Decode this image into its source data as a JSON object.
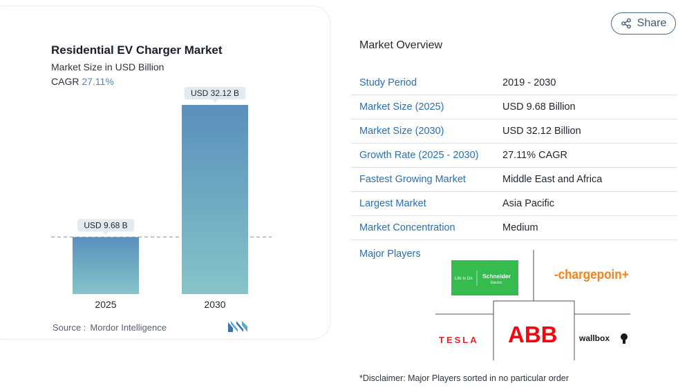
{
  "chart": {
    "title": "Residential EV Charger Market",
    "subtitle": "Market Size in USD Billion",
    "cagr_label": "CAGR",
    "cagr_value": "27.11%",
    "source_label": "Source :",
    "source_value": "Mordor Intelligence"
  },
  "chart_data": {
    "type": "bar",
    "categories": [
      "2025",
      "2030"
    ],
    "values": [
      9.68,
      32.12
    ],
    "data_labels": [
      "USD 9.68 B",
      "USD 32.12 B"
    ],
    "title": "Residential EV Charger Market",
    "subtitle": "Market Size in USD Billion",
    "xlabel": "",
    "ylabel": "",
    "ylim": [
      0,
      32.12
    ],
    "grid": false,
    "reference_line": 9.68,
    "colors": {
      "bar_top": "#5a8fbc",
      "bar_bottom": "#86c4c9",
      "label_bg": "#e3eaf0"
    }
  },
  "share": {
    "label": "Share"
  },
  "overview": {
    "title": "Market Overview",
    "rows": [
      {
        "key": "Study Period",
        "value": "2019 - 2030"
      },
      {
        "key": "Market Size (2025)",
        "value": "USD 9.68 Billion"
      },
      {
        "key": "Market Size (2030)",
        "value": "USD 32.12 Billion"
      },
      {
        "key": "Growth Rate (2025 - 2030)",
        "value": "27.11% CAGR"
      },
      {
        "key": "Fastest Growing Market",
        "value": "Middle East and Africa"
      },
      {
        "key": "Largest Market",
        "value": "Asia Pacific"
      },
      {
        "key": "Market Concentration",
        "value": "Medium"
      }
    ],
    "major_players_label": "Major Players",
    "players": [
      {
        "name": "Schneider Electric",
        "logo_text": "Schneider",
        "logo_sub": "Electric",
        "tagline": "Life Is On"
      },
      {
        "name": "ChargePoint",
        "logo_text": "-chargepoin+"
      },
      {
        "name": "Tesla",
        "logo_text": "TESLA"
      },
      {
        "name": "ABB",
        "logo_text": "ABB"
      },
      {
        "name": "wallbox",
        "logo_text": "wallbox"
      }
    ],
    "disclaimer": "*Disclaimer: Major Players sorted in no particular order"
  },
  "colors": {
    "link": "#2a6fb5",
    "schneider_green": "#3dcd58",
    "tesla_red": "#e82127",
    "abb_red": "#ff000f",
    "chargepoint_orange": "#f5821f"
  }
}
